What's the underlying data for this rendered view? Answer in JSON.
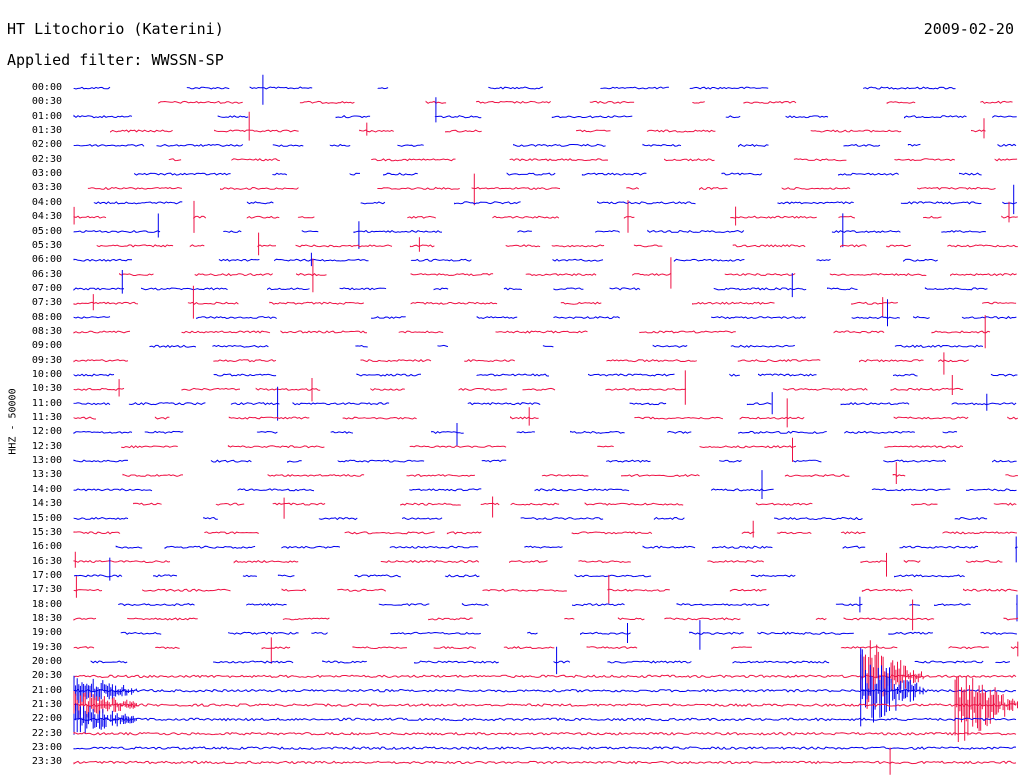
{
  "header": {
    "station_title": "HT Litochorio (Katerini)",
    "date": "2009-02-20",
    "filter_label": "Applied filter: WWSSN-SP",
    "channel_label": "HHZ - 50000"
  },
  "colors": {
    "trace_a": "#0000ee",
    "trace_b": "#ee1144",
    "background": "#ffffff",
    "text": "#000000"
  },
  "chart_data": {
    "type": "helicorder",
    "ylabel": "HHZ - 50000",
    "row_labels": [
      "00:00",
      "00:30",
      "01:00",
      "01:30",
      "02:00",
      "02:30",
      "03:00",
      "03:30",
      "04:00",
      "04:30",
      "05:00",
      "05:30",
      "06:00",
      "06:30",
      "07:00",
      "07:30",
      "08:00",
      "08:30",
      "09:00",
      "09:30",
      "10:00",
      "10:30",
      "11:00",
      "11:30",
      "12:00",
      "12:30",
      "13:00",
      "13:30",
      "14:00",
      "14:30",
      "15:00",
      "15:30",
      "16:00",
      "16:30",
      "17:00",
      "17:30",
      "18:00",
      "18:30",
      "19:00",
      "19:30",
      "20:00",
      "20:30",
      "21:00",
      "21:30",
      "22:00",
      "22:30",
      "23:00",
      "23:30"
    ],
    "row_colors": [
      "trace_a",
      "trace_b"
    ],
    "row_minutes": 30,
    "events_minutes": [
      {
        "start": 1255,
        "label": ""
      },
      {
        "start": 1285,
        "label": ""
      },
      {
        "start": 1318,
        "label": ""
      }
    ]
  }
}
